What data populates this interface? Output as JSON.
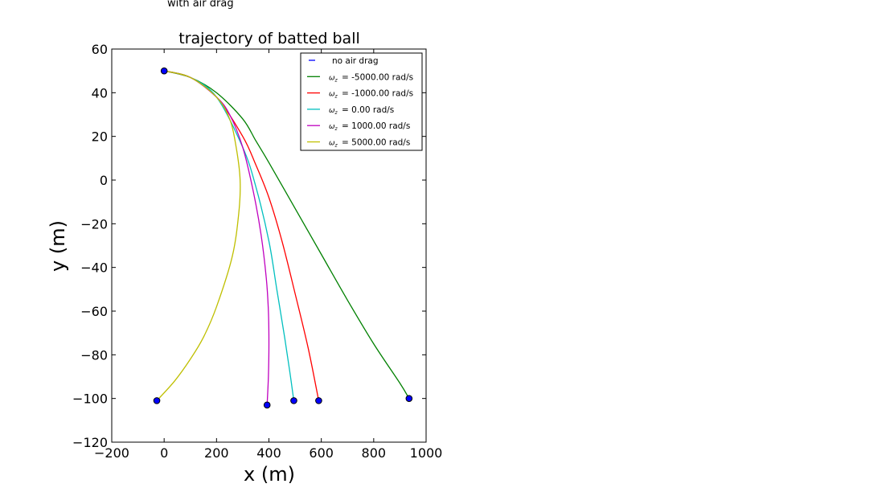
{
  "chart_data": {
    "type": "line",
    "top_text": "with air drag",
    "title": "trajectory of batted ball",
    "xlabel": "x (m)",
    "ylabel": "y (m)",
    "xlim": [
      -200,
      1000
    ],
    "ylim": [
      -120,
      60
    ],
    "xticks": [
      -200,
      0,
      200,
      400,
      600,
      800,
      1000
    ],
    "yticks": [
      -120,
      -100,
      -80,
      -60,
      -40,
      -20,
      0,
      20,
      40,
      60
    ],
    "grid": false,
    "legend_position": "top-right",
    "start_point": {
      "x": 0,
      "y": 50
    },
    "series": [
      {
        "name": "no air drag",
        "color": "#0000ff",
        "style": "dashed",
        "x": [],
        "y": []
      },
      {
        "name": "= -5000.00 rad/s",
        "color": "#008000",
        "x": [
          0,
          100,
          200,
          300,
          350,
          400,
          500,
          600,
          700,
          800,
          900,
          935
        ],
        "y": [
          50,
          47,
          40,
          28,
          18,
          8,
          -13,
          -34,
          -55,
          -75,
          -93,
          -100
        ],
        "end_marker": {
          "x": 935,
          "y": -100
        }
      },
      {
        "name": "= -1000.00 rad/s",
        "color": "#ff0000",
        "x": [
          0,
          100,
          200,
          300,
          350,
          400,
          450,
          500,
          550,
          590
        ],
        "y": [
          50,
          47,
          38,
          20,
          7,
          -8,
          -28,
          -52,
          -77,
          -101
        ],
        "end_marker": {
          "x": 590,
          "y": -101
        }
      },
      {
        "name": "= 0.00 rad/s",
        "color": "#00bfbf",
        "x": [
          0,
          100,
          200,
          300,
          350,
          400,
          430,
          460,
          480,
          495
        ],
        "y": [
          50,
          47,
          38,
          15,
          -3,
          -28,
          -50,
          -72,
          -88,
          -101
        ],
        "end_marker": {
          "x": 495,
          "y": -101
        }
      },
      {
        "name": "= 1000.00 rad/s",
        "color": "#bf00bf",
        "x": [
          0,
          100,
          200,
          250,
          300,
          340,
          370,
          390,
          398,
          400,
          398,
          393
        ],
        "y": [
          50,
          47,
          38,
          30,
          15,
          -5,
          -25,
          -45,
          -60,
          -75,
          -90,
          -103
        ],
        "end_marker": {
          "x": 393,
          "y": -103
        }
      },
      {
        "name": "= 5000.00 rad/s",
        "color": "#bfbf00",
        "x": [
          0,
          100,
          200,
          250,
          275,
          290,
          285,
          260,
          200,
          150,
          100,
          40,
          -28
        ],
        "y": [
          50,
          47,
          38,
          28,
          15,
          0,
          -15,
          -35,
          -58,
          -72,
          -82,
          -92,
          -101
        ],
        "end_marker": {
          "x": -28,
          "y": -101
        }
      }
    ]
  }
}
